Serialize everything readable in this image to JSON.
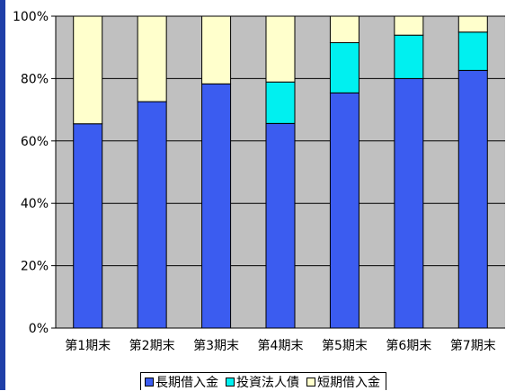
{
  "chart_data": {
    "type": "bar",
    "stacked": true,
    "categories": [
      "第1期末",
      "第2期末",
      "第3期末",
      "第4期末",
      "第5期末",
      "第6期末",
      "第7期末"
    ],
    "series": [
      {
        "name": "長期借入金",
        "color": "#3b5cf0",
        "values": [
          65.5,
          72.6,
          78.3,
          65.6,
          75.4,
          80.0,
          82.6
        ]
      },
      {
        "name": "投資法人債",
        "color": "#00f0f0",
        "values": [
          0,
          0,
          0,
          13.3,
          16.1,
          13.9,
          12.3
        ]
      },
      {
        "name": "短期借入金",
        "color": "#ffffcc",
        "values": [
          34.5,
          27.4,
          21.7,
          21.1,
          8.5,
          6.1,
          5.1
        ]
      }
    ],
    "ylim": [
      0,
      100
    ],
    "yticks": [
      "0%",
      "20%",
      "40%",
      "60%",
      "80%",
      "100%"
    ],
    "grid": true,
    "plot_background": "#c0c0c0",
    "legend_position": "bottom"
  }
}
